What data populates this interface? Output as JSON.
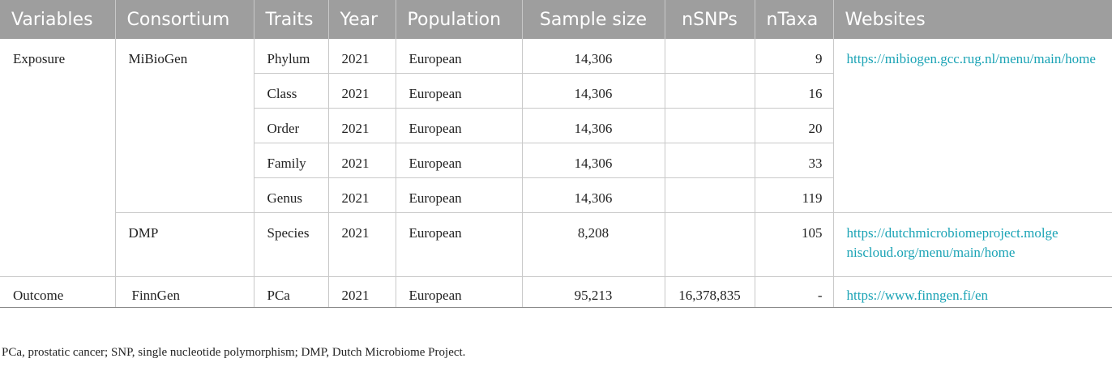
{
  "headers": {
    "variables": "Variables",
    "consortium": "Consortium",
    "traits": "Traits",
    "year": "Year",
    "population": "Population",
    "sample_size": "Sample size",
    "nsnps": "nSNPs",
    "ntaxa": "nTaxa",
    "websites": "Websites"
  },
  "exposure": {
    "variable": "Exposure",
    "mibiogen": {
      "consortium": "MiBioGen",
      "website": "https://mibiogen.gcc.rug.nl/menu/main/home",
      "rows": [
        {
          "trait": "Phylum",
          "year": "2021",
          "population": "European",
          "sample_size": "14,306",
          "nsnps": "",
          "ntaxa": "9"
        },
        {
          "trait": "Class",
          "year": "2021",
          "population": "European",
          "sample_size": "14,306",
          "nsnps": "",
          "ntaxa": "16"
        },
        {
          "trait": "Order",
          "year": "2021",
          "population": "European",
          "sample_size": "14,306",
          "nsnps": "",
          "ntaxa": "20"
        },
        {
          "trait": "Family",
          "year": "2021",
          "population": "European",
          "sample_size": "14,306",
          "nsnps": "",
          "ntaxa": "33"
        },
        {
          "trait": "Genus",
          "year": "2021",
          "population": "European",
          "sample_size": "14,306",
          "nsnps": "",
          "ntaxa": "119"
        }
      ]
    },
    "dmp": {
      "consortium": "DMP",
      "trait": "Species",
      "year": "2021",
      "population": "European",
      "sample_size": "8,208",
      "nsnps": "",
      "ntaxa": "105",
      "website": "https://dutchmicrobiomeproject.molgeniscloud.org/menu/main/home"
    }
  },
  "outcome": {
    "variable": "Outcome",
    "consortium": "FinnGen",
    "trait": "PCa",
    "year": "2021",
    "population": "European",
    "sample_size": "95,213",
    "nsnps": "16,378,835",
    "ntaxa": "-",
    "website": "https://www.finngen.fi/en"
  },
  "footnote": "PCa, prostatic cancer; SNP, single nucleotide polymorphism; DMP, Dutch Microbiome Project.",
  "colors": {
    "header_bg": "#9e9e9e",
    "header_text": "#ffffff",
    "link": "#1aa3b5",
    "border": "#c9c9c9"
  }
}
